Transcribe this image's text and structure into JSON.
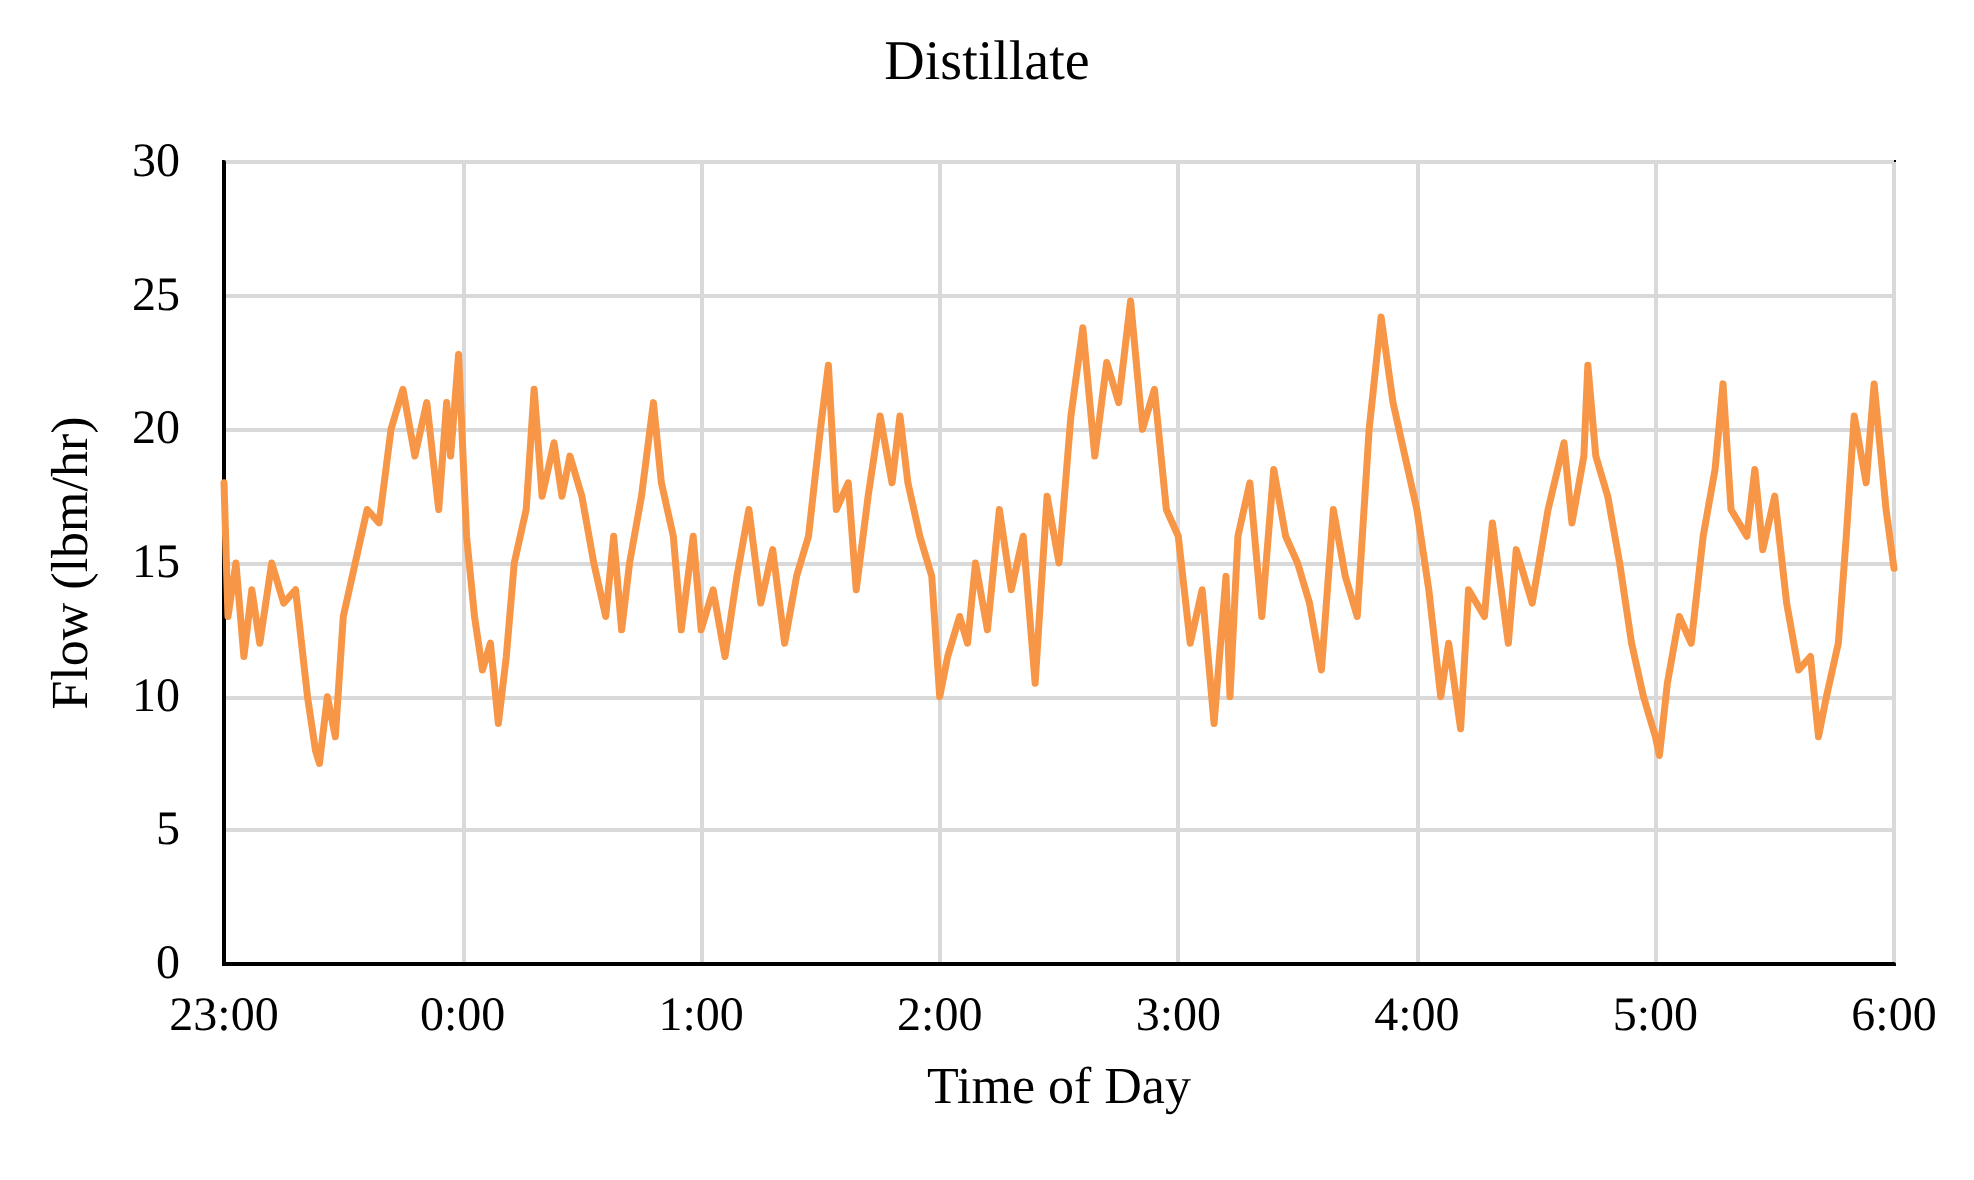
{
  "chart_data": {
    "type": "line",
    "title": "Distillate",
    "xlabel": "Time of Day",
    "ylabel": "Flow (lbm/hr)",
    "x": [
      "2000-01-01T23:00",
      "2000-01-01T23:01",
      "2000-01-01T23:03",
      "2000-01-01T23:05",
      "2000-01-01T23:07",
      "2000-01-01T23:09",
      "2000-01-01T23:12",
      "2000-01-01T23:15",
      "2000-01-01T23:18",
      "2000-01-01T23:21",
      "2000-01-01T23:23",
      "2000-01-01T23:24",
      "2000-01-01T23:26",
      "2000-01-01T23:28",
      "2000-01-01T23:30",
      "2000-01-01T23:33",
      "2000-01-01T23:36",
      "2000-01-01T23:39",
      "2000-01-01T23:42",
      "2000-01-01T23:45",
      "2000-01-01T23:48",
      "2000-01-01T23:51",
      "2000-01-01T23:54",
      "2000-01-01T23:56",
      "2000-01-01T23:57",
      "2000-01-01T23:59",
      "2000-01-02T00:01",
      "2000-01-02T00:03",
      "2000-01-02T00:05",
      "2000-01-02T00:07",
      "2000-01-02T00:09",
      "2000-01-02T00:11",
      "2000-01-02T00:13",
      "2000-01-02T00:16",
      "2000-01-02T00:18",
      "2000-01-02T00:20",
      "2000-01-02T00:23",
      "2000-01-02T00:25",
      "2000-01-02T00:27",
      "2000-01-02T00:30",
      "2000-01-02T00:33",
      "2000-01-02T00:36",
      "2000-01-02T00:38",
      "2000-01-02T00:40",
      "2000-01-02T00:42",
      "2000-01-02T00:45",
      "2000-01-02T00:48",
      "2000-01-02T00:50",
      "2000-01-02T00:53",
      "2000-01-02T00:55",
      "2000-01-02T00:58",
      "2000-01-02T01:00",
      "2000-01-02T01:03",
      "2000-01-02T01:06",
      "2000-01-02T01:09",
      "2000-01-02T01:12",
      "2000-01-02T01:15",
      "2000-01-02T01:18",
      "2000-01-02T01:21",
      "2000-01-02T01:24",
      "2000-01-02T01:27",
      "2000-01-02T01:30",
      "2000-01-02T01:32",
      "2000-01-02T01:34",
      "2000-01-02T01:37",
      "2000-01-02T01:39",
      "2000-01-02T01:42",
      "2000-01-02T01:45",
      "2000-01-02T01:48",
      "2000-01-02T01:50",
      "2000-01-02T01:52",
      "2000-01-02T01:55",
      "2000-01-02T01:58",
      "2000-01-02T02:00",
      "2000-01-02T02:02",
      "2000-01-02T02:05",
      "2000-01-02T02:07",
      "2000-01-02T02:09",
      "2000-01-02T02:12",
      "2000-01-02T02:15",
      "2000-01-02T02:18",
      "2000-01-02T02:21",
      "2000-01-02T02:24",
      "2000-01-02T02:27",
      "2000-01-02T02:30",
      "2000-01-02T02:33",
      "2000-01-02T02:36",
      "2000-01-02T02:39",
      "2000-01-02T02:42",
      "2000-01-02T02:45",
      "2000-01-02T02:48",
      "2000-01-02T02:51",
      "2000-01-02T02:54",
      "2000-01-02T02:57",
      "2000-01-02T03:00",
      "2000-01-02T03:03",
      "2000-01-02T03:06",
      "2000-01-02T03:09",
      "2000-01-02T03:12",
      "2000-01-02T03:13",
      "2000-01-02T03:15",
      "2000-01-02T03:18",
      "2000-01-02T03:21",
      "2000-01-02T03:24",
      "2000-01-02T03:27",
      "2000-01-02T03:30",
      "2000-01-02T03:33",
      "2000-01-02T03:36",
      "2000-01-02T03:39",
      "2000-01-02T03:42",
      "2000-01-02T03:45",
      "2000-01-02T03:48",
      "2000-01-02T03:51",
      "2000-01-02T03:54",
      "2000-01-02T03:57",
      "2000-01-02T04:00",
      "2000-01-02T04:03",
      "2000-01-02T04:06",
      "2000-01-02T04:08",
      "2000-01-02T04:11",
      "2000-01-02T04:13",
      "2000-01-02T04:17",
      "2000-01-02T04:19",
      "2000-01-02T04:23",
      "2000-01-02T04:25",
      "2000-01-02T04:29",
      "2000-01-02T04:33",
      "2000-01-02T04:37",
      "2000-01-02T04:39",
      "2000-01-02T04:42",
      "2000-01-02T04:43",
      "2000-01-02T04:45",
      "2000-01-02T04:48",
      "2000-01-02T04:51",
      "2000-01-02T04:54",
      "2000-01-02T04:57",
      "2000-01-02T05:00",
      "2000-01-02T05:01",
      "2000-01-02T05:03",
      "2000-01-02T05:06",
      "2000-01-02T05:09",
      "2000-01-02T05:12",
      "2000-01-02T05:15",
      "2000-01-02T05:17",
      "2000-01-02T05:19",
      "2000-01-02T05:23",
      "2000-01-02T05:25",
      "2000-01-02T05:27",
      "2000-01-02T05:30",
      "2000-01-02T05:33",
      "2000-01-02T05:36",
      "2000-01-02T05:39",
      "2000-01-02T05:41",
      "2000-01-02T05:43",
      "2000-01-02T05:46",
      "2000-01-02T05:48",
      "2000-01-02T05:50",
      "2000-01-02T05:53",
      "2000-01-02T05:55",
      "2000-01-02T05:58",
      "2000-01-02T06:00"
    ],
    "series": [
      {
        "color": "#f79646",
        "values": [
          18,
          13,
          15,
          11.5,
          14,
          12,
          15,
          13.5,
          14,
          10,
          8,
          7.5,
          10,
          8.5,
          13,
          15,
          17,
          16.5,
          20,
          21.5,
          19,
          21,
          17,
          21,
          19,
          22.8,
          16,
          13,
          11,
          12,
          9,
          11.5,
          15,
          17,
          21.5,
          17.5,
          19.5,
          17.5,
          19,
          17.5,
          15,
          13,
          16,
          12.5,
          15,
          17.5,
          21,
          18,
          16,
          12.5,
          16,
          12.5,
          14,
          11.5,
          14.5,
          17,
          13.5,
          15.5,
          12,
          14.5,
          16,
          20,
          22.4,
          17,
          18,
          14,
          17.5,
          20.5,
          18,
          20.5,
          18,
          16,
          14.5,
          10,
          11.5,
          13,
          12,
          15,
          12.5,
          17,
          14,
          16,
          10.5,
          17.5,
          15,
          20.5,
          23.8,
          19,
          22.5,
          21,
          24.8,
          20,
          21.5,
          17,
          16,
          12,
          14,
          9,
          14.5,
          10,
          16,
          18,
          13,
          18.5,
          16,
          15,
          13.5,
          11,
          17,
          14.5,
          13,
          20,
          24.2,
          21,
          19,
          17,
          14,
          10,
          12,
          8.8,
          14,
          13,
          16.5,
          12,
          15.5,
          13.5,
          17,
          19.5,
          16.5,
          19,
          22.4,
          19,
          17.5,
          15,
          12,
          10,
          8.5,
          7.8,
          10.5,
          13,
          12,
          16,
          18.5,
          21.7,
          17,
          16,
          18.5,
          15.5,
          17.5,
          13.5,
          11,
          11.5,
          8.5,
          10,
          12,
          16,
          20.5,
          18,
          21.7,
          17,
          14.8
        ]
      }
    ],
    "xlim": [
      "2000-01-01T23:00",
      "2000-01-02T06:00"
    ],
    "xticks": [
      {
        "value": "2000-01-01T23:00",
        "label": "23:00"
      },
      {
        "value": "2000-01-02T00:00",
        "label": "0:00"
      },
      {
        "value": "2000-01-02T01:00",
        "label": "1:00"
      },
      {
        "value": "2000-01-02T02:00",
        "label": "2:00"
      },
      {
        "value": "2000-01-02T03:00",
        "label": "3:00"
      },
      {
        "value": "2000-01-02T04:00",
        "label": "4:00"
      },
      {
        "value": "2000-01-02T05:00",
        "label": "5:00"
      },
      {
        "value": "2000-01-02T06:00",
        "label": "6:00"
      }
    ],
    "ylim": [
      0,
      30
    ],
    "yticks": [
      0,
      5,
      10,
      15,
      20,
      25,
      30
    ],
    "grid": true,
    "marker": "none",
    "line_style": "solid"
  }
}
